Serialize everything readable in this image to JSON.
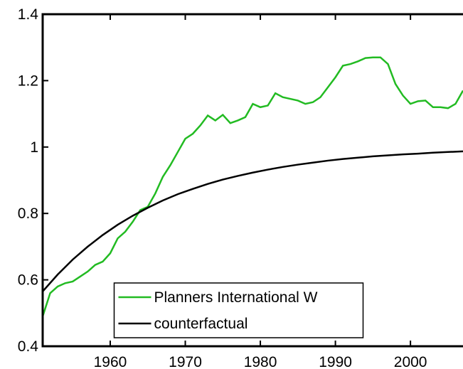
{
  "chart_data": {
    "type": "line",
    "xlim": [
      1951,
      2007
    ],
    "ylim": [
      0.4,
      1.4
    ],
    "xticks": [
      1960,
      1970,
      1980,
      1990,
      2000
    ],
    "yticks": [
      0.4,
      0.6,
      0.8,
      1,
      1.2,
      1.4
    ],
    "legend": "lower center",
    "series": [
      {
        "name": "Planners International W",
        "color": "#22bb22",
        "x": [
          1951,
          1952,
          1953,
          1954,
          1955,
          1956,
          1957,
          1958,
          1959,
          1960,
          1961,
          1962,
          1963,
          1964,
          1965,
          1966,
          1967,
          1968,
          1969,
          1970,
          1971,
          1972,
          1973,
          1974,
          1975,
          1976,
          1977,
          1978,
          1979,
          1980,
          1981,
          1982,
          1983,
          1984,
          1985,
          1986,
          1987,
          1988,
          1989,
          1990,
          1991,
          1992,
          1993,
          1994,
          1995,
          1996,
          1997,
          1998,
          1999,
          2000,
          2001,
          2002,
          2003,
          2004,
          2005,
          2006,
          2007
        ],
        "values": [
          0.49,
          0.56,
          0.58,
          0.59,
          0.595,
          0.61,
          0.625,
          0.645,
          0.655,
          0.68,
          0.725,
          0.745,
          0.775,
          0.81,
          0.82,
          0.86,
          0.91,
          0.945,
          0.985,
          1.025,
          1.04,
          1.065,
          1.095,
          1.08,
          1.097,
          1.072,
          1.08,
          1.09,
          1.13,
          1.12,
          1.125,
          1.162,
          1.15,
          1.145,
          1.14,
          1.13,
          1.135,
          1.15,
          1.18,
          1.21,
          1.245,
          1.25,
          1.258,
          1.268,
          1.27,
          1.27,
          1.25,
          1.19,
          1.155,
          1.13,
          1.138,
          1.14,
          1.12,
          1.12,
          1.117,
          1.13,
          1.17
        ]
      },
      {
        "name": "counterfactual",
        "color": "#000000",
        "x": [
          1951,
          1953,
          1955,
          1957,
          1959,
          1961,
          1963,
          1965,
          1967,
          1969,
          1971,
          1973,
          1975,
          1977,
          1979,
          1981,
          1983,
          1985,
          1987,
          1989,
          1991,
          1993,
          1995,
          1997,
          1999,
          2001,
          2003,
          2005,
          2007
        ],
        "values": [
          0.565,
          0.616,
          0.661,
          0.7,
          0.735,
          0.766,
          0.793,
          0.817,
          0.839,
          0.858,
          0.874,
          0.889,
          0.902,
          0.913,
          0.923,
          0.932,
          0.94,
          0.947,
          0.953,
          0.959,
          0.964,
          0.968,
          0.972,
          0.975,
          0.978,
          0.98,
          0.983,
          0.985,
          0.987
        ]
      }
    ]
  }
}
